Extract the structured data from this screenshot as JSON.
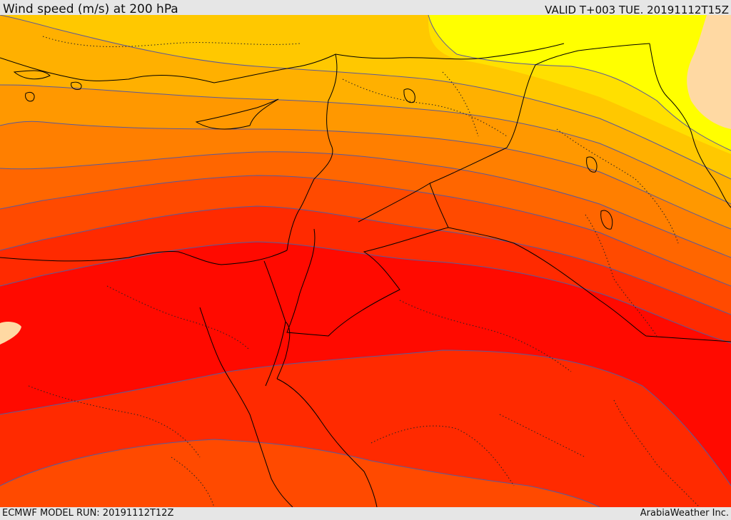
{
  "header": {
    "title": "Wind speed (m/s) at 200 hPa",
    "valid": "VALID T+003 TUE. 20191112T15Z"
  },
  "footer": {
    "model_run": "ECMWF MODEL RUN: 20191112T12Z",
    "credit": "ArabiaWeather Inc."
  },
  "map": {
    "colors": {
      "light-band": "#ffd9a3",
      "yellow": "#ffff00",
      "gold": "#ffe000",
      "amber": "#ffc800",
      "orange-1": "#ffb000",
      "orange-2": "#ff9800",
      "orange-3": "#ff7f00",
      "orange-4": "#ff6600",
      "red-orange": "#ff4a00",
      "red-1": "#ff2a00",
      "red-2": "#ff0a00",
      "contour": "#5a5a9a"
    }
  }
}
